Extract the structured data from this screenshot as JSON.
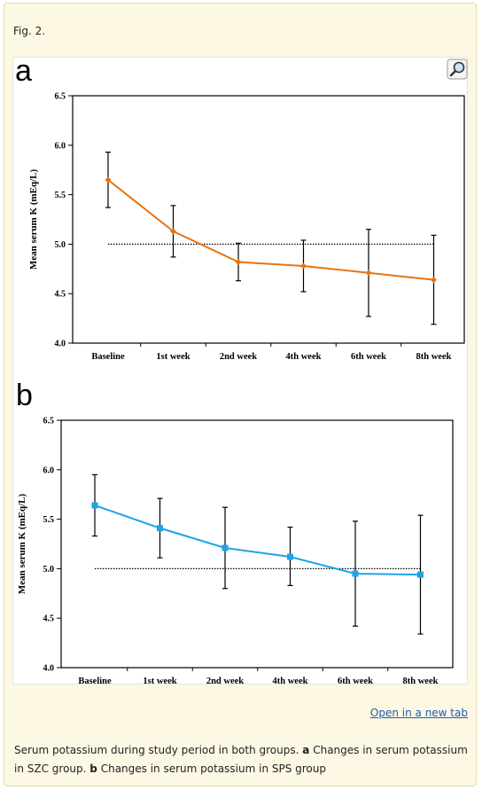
{
  "figure_label": "Fig. 2.",
  "open_link_text": "Open in a new tab",
  "caption": {
    "text": "Serum potassium during study period in both groups.",
    "a_letter": "a",
    "a_text": "Changes in serum potassium in SZC group.",
    "b_letter": "b",
    "b_text": "Changes in serum potassium in SPS group"
  },
  "colors": {
    "szc": "#e8730f",
    "sps": "#1fa3e6",
    "reference": "#000000"
  },
  "chart_data": [
    {
      "panel": "a",
      "type": "line",
      "categories": [
        "Baseline",
        "1st week",
        "2nd week",
        "4th week",
        "6th week",
        "8th week"
      ],
      "series": [
        {
          "values": [
            5.65,
            5.13,
            4.82,
            4.78,
            4.71,
            4.64
          ],
          "err_low": [
            5.37,
            4.87,
            4.63,
            4.52,
            4.27,
            4.19
          ],
          "err_high": [
            5.93,
            5.39,
            5.01,
            5.04,
            5.15,
            5.09
          ],
          "color": "#e8730f",
          "marker": "diamond"
        }
      ],
      "reference_line": 5.0,
      "ylabel": "Mean serum K (mEq/L)",
      "ylim": [
        4.0,
        6.5
      ],
      "yticks": [
        "4.0",
        "4.5",
        "5.0",
        "5.5",
        "6.0",
        "6.5"
      ],
      "grid": false
    },
    {
      "panel": "b",
      "type": "line",
      "categories": [
        "Baseline",
        "1st week",
        "2nd week",
        "4th week",
        "6th week",
        "8th week"
      ],
      "series": [
        {
          "values": [
            5.64,
            5.41,
            5.21,
            5.12,
            4.95,
            4.94
          ],
          "err_low": [
            5.33,
            5.11,
            4.8,
            4.83,
            4.42,
            4.34
          ],
          "err_high": [
            5.95,
            5.71,
            5.62,
            5.42,
            5.48,
            5.54
          ],
          "color": "#1fa3e6",
          "marker": "square"
        }
      ],
      "reference_line": 5.0,
      "ylabel": "Mean serum K (mEq/L)",
      "ylim": [
        4.0,
        6.5
      ],
      "yticks": [
        "4.0",
        "4.5",
        "5.0",
        "5.5",
        "6.0",
        "6.5"
      ],
      "grid": false
    }
  ]
}
